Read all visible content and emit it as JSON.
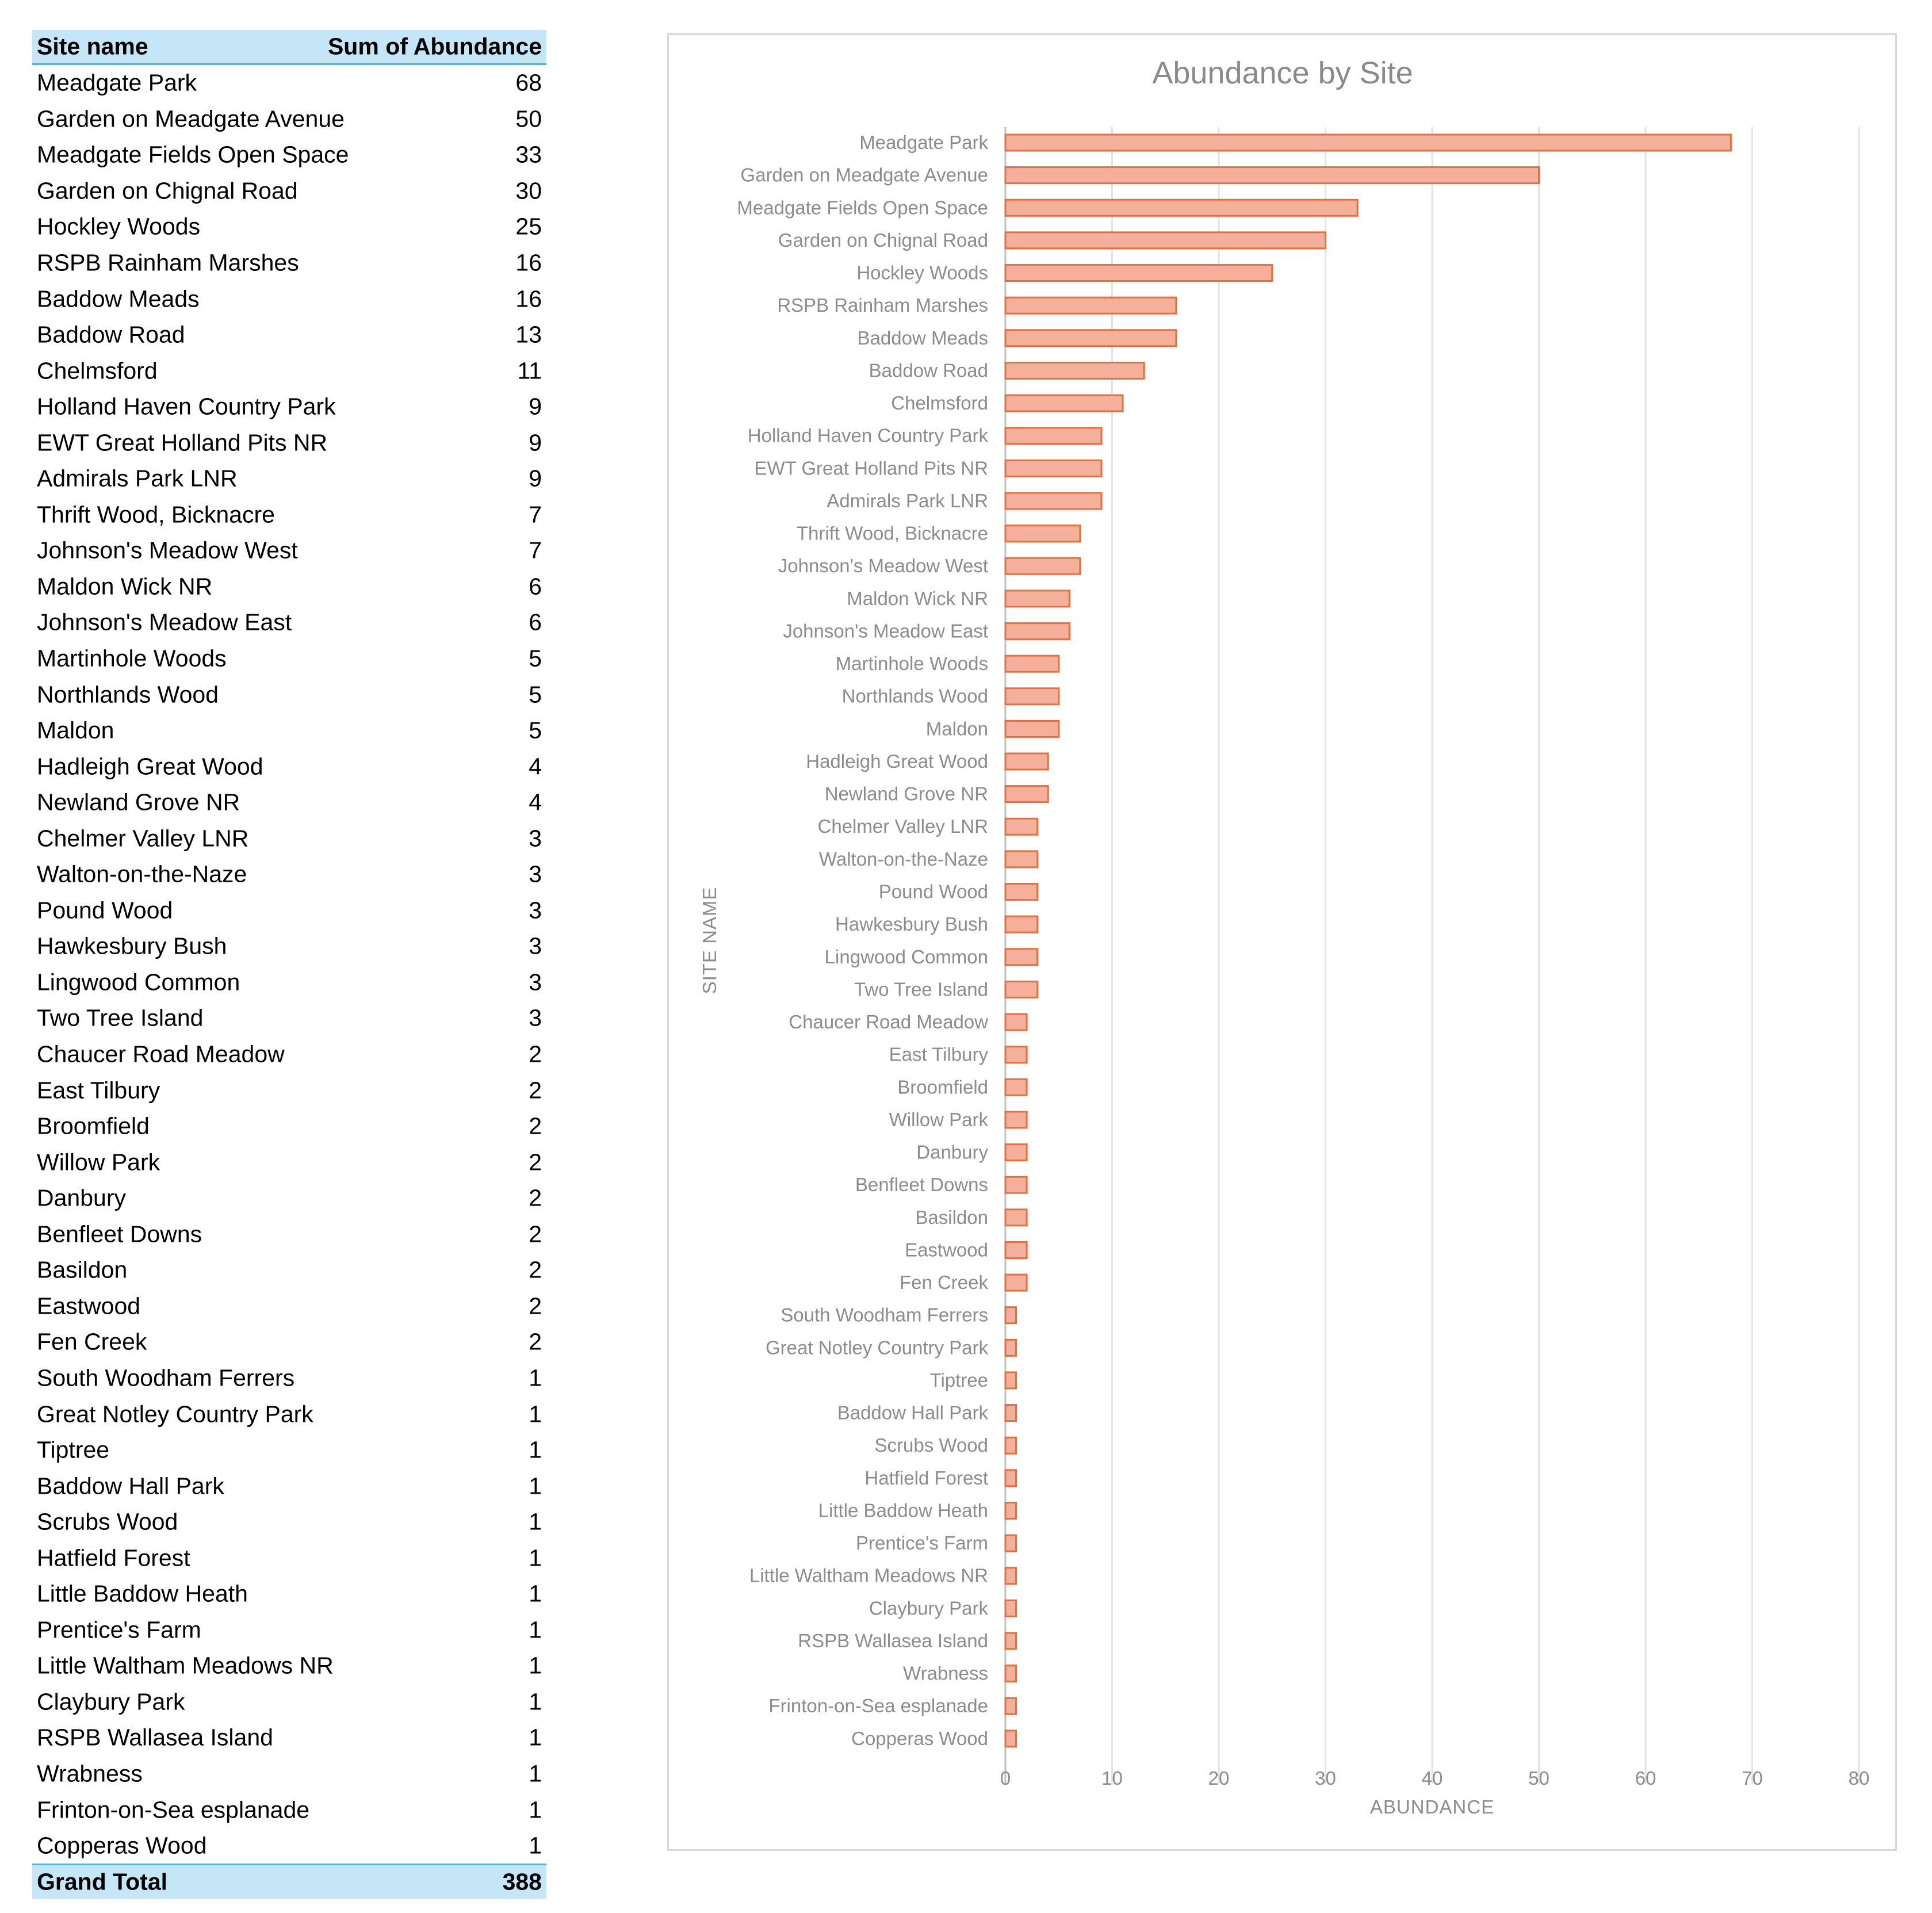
{
  "pivot": {
    "header": {
      "name": "Site name",
      "value": "Sum of Abundance"
    },
    "rows": [
      {
        "name": "Meadgate Park",
        "value": "68"
      },
      {
        "name": "Garden on Meadgate Avenue",
        "value": "50"
      },
      {
        "name": "Meadgate Fields Open Space",
        "value": "33"
      },
      {
        "name": "Garden on Chignal Road",
        "value": "30"
      },
      {
        "name": "Hockley Woods",
        "value": "25"
      },
      {
        "name": "RSPB Rainham Marshes",
        "value": "16"
      },
      {
        "name": "Baddow Meads",
        "value": "16"
      },
      {
        "name": "Baddow Road",
        "value": "13"
      },
      {
        "name": "Chelmsford",
        "value": "11"
      },
      {
        "name": "Holland Haven Country Park",
        "value": "9"
      },
      {
        "name": "EWT Great Holland Pits NR",
        "value": "9"
      },
      {
        "name": "Admirals Park LNR",
        "value": "9"
      },
      {
        "name": "Thrift Wood, Bicknacre",
        "value": "7"
      },
      {
        "name": "Johnson's Meadow West",
        "value": "7"
      },
      {
        "name": "Maldon Wick NR",
        "value": "6"
      },
      {
        "name": "Johnson's Meadow East",
        "value": "6"
      },
      {
        "name": "Martinhole Woods",
        "value": "5"
      },
      {
        "name": "Northlands Wood",
        "value": "5"
      },
      {
        "name": "Maldon",
        "value": "5"
      },
      {
        "name": "Hadleigh Great Wood",
        "value": "4"
      },
      {
        "name": "Newland Grove NR",
        "value": "4"
      },
      {
        "name": "Chelmer Valley LNR",
        "value": "3"
      },
      {
        "name": "Walton-on-the-Naze",
        "value": "3"
      },
      {
        "name": "Pound Wood",
        "value": "3"
      },
      {
        "name": "Hawkesbury Bush",
        "value": "3"
      },
      {
        "name": "Lingwood Common",
        "value": "3"
      },
      {
        "name": "Two Tree Island",
        "value": "3"
      },
      {
        "name": "Chaucer Road Meadow",
        "value": "2"
      },
      {
        "name": "East Tilbury",
        "value": "2"
      },
      {
        "name": "Broomfield",
        "value": "2"
      },
      {
        "name": "Willow Park",
        "value": "2"
      },
      {
        "name": "Danbury",
        "value": "2"
      },
      {
        "name": "Benfleet Downs",
        "value": "2"
      },
      {
        "name": "Basildon",
        "value": "2"
      },
      {
        "name": "Eastwood",
        "value": "2"
      },
      {
        "name": "Fen Creek",
        "value": "2"
      },
      {
        "name": "South Woodham Ferrers",
        "value": "1"
      },
      {
        "name": "Great Notley Country Park",
        "value": "1"
      },
      {
        "name": "Tiptree",
        "value": "1"
      },
      {
        "name": "Baddow Hall Park",
        "value": "1"
      },
      {
        "name": "Scrubs Wood",
        "value": "1"
      },
      {
        "name": "Hatfield Forest",
        "value": "1"
      },
      {
        "name": "Little Baddow Heath",
        "value": "1"
      },
      {
        "name": "Prentice's Farm",
        "value": "1"
      },
      {
        "name": "Little Waltham Meadows NR",
        "value": "1"
      },
      {
        "name": "Claybury Park",
        "value": "1"
      },
      {
        "name": "RSPB Wallasea Island",
        "value": "1"
      },
      {
        "name": "Wrabness",
        "value": "1"
      },
      {
        "name": "Frinton-on-Sea esplanade",
        "value": "1"
      },
      {
        "name": "Copperas Wood",
        "value": "1"
      }
    ],
    "total": {
      "name": "Grand Total",
      "value": "388"
    }
  },
  "chart_data": {
    "type": "bar",
    "orientation": "horizontal",
    "title": "Abundance by Site",
    "xlabel": "ABUNDANCE",
    "ylabel": "SITE NAME",
    "xlim": [
      0,
      80
    ],
    "xticks": [
      0,
      10,
      20,
      30,
      40,
      50,
      60,
      70,
      80
    ],
    "grid": true,
    "legend": "none",
    "bar_fill": "#f4b09a",
    "bar_stroke": "#e4703f",
    "categories": [
      "Meadgate Park",
      "Garden on Meadgate Avenue",
      "Meadgate Fields Open Space",
      "Garden on Chignal Road",
      "Hockley Woods",
      "RSPB Rainham Marshes",
      "Baddow Meads",
      "Baddow Road",
      "Chelmsford",
      "Holland Haven Country Park",
      "EWT Great Holland Pits NR",
      "Admirals Park LNR",
      "Thrift Wood, Bicknacre",
      "Johnson's Meadow West",
      "Maldon Wick NR",
      "Johnson's Meadow East",
      "Martinhole Woods",
      "Northlands Wood",
      "Maldon",
      "Hadleigh Great Wood",
      "Newland Grove NR",
      "Chelmer Valley LNR",
      "Walton-on-the-Naze",
      "Pound Wood",
      "Hawkesbury Bush",
      "Lingwood Common",
      "Two Tree Island",
      "Chaucer Road Meadow",
      "East Tilbury",
      "Broomfield",
      "Willow Park",
      "Danbury",
      "Benfleet Downs",
      "Basildon",
      "Eastwood",
      "Fen Creek",
      "South Woodham Ferrers",
      "Great Notley Country Park",
      "Tiptree",
      "Baddow Hall Park",
      "Scrubs Wood",
      "Hatfield Forest",
      "Little Baddow Heath",
      "Prentice's Farm",
      "Little Waltham Meadows NR",
      "Claybury Park",
      "RSPB Wallasea Island",
      "Wrabness",
      "Frinton-on-Sea esplanade",
      "Copperas Wood"
    ],
    "values": [
      68,
      50,
      33,
      30,
      25,
      16,
      16,
      13,
      11,
      9,
      9,
      9,
      7,
      7,
      6,
      6,
      5,
      5,
      5,
      4,
      4,
      3,
      3,
      3,
      3,
      3,
      3,
      2,
      2,
      2,
      2,
      2,
      2,
      2,
      2,
      2,
      1,
      1,
      1,
      1,
      1,
      1,
      1,
      1,
      1,
      1,
      1,
      1,
      1,
      1
    ]
  }
}
